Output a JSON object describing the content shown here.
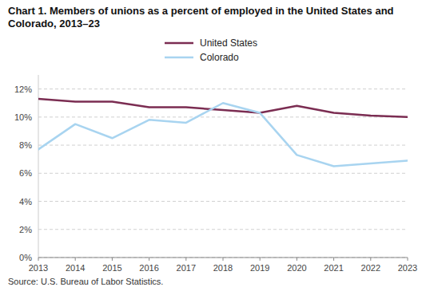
{
  "chart_data": {
    "type": "line",
    "title": "Chart 1. Members of unions as a percent of employed in the United States and Colorado, 2013–23",
    "annotations": [
      "Source: U.S. Bureau of Labor Statistics."
    ],
    "x": [
      2013,
      2014,
      2015,
      2016,
      2017,
      2018,
      2019,
      2020,
      2021,
      2022,
      2023
    ],
    "series": [
      {
        "name": "United States",
        "color": "#7b2d52",
        "values": [
          11.3,
          11.1,
          11.1,
          10.7,
          10.7,
          10.5,
          10.3,
          10.8,
          10.3,
          10.1,
          10.0
        ]
      },
      {
        "name": "Colorado",
        "color": "#a8d4f0",
        "values": [
          7.7,
          9.5,
          8.5,
          9.8,
          9.6,
          11.0,
          10.3,
          7.3,
          6.5,
          6.7,
          6.9
        ]
      }
    ],
    "xlim": [
      2013,
      2023
    ],
    "xticks": [
      2013,
      2014,
      2015,
      2016,
      2017,
      2018,
      2019,
      2020,
      2021,
      2022,
      2023
    ],
    "ylim": [
      0,
      13
    ],
    "yticks": [
      {
        "value": 0,
        "label": "0%"
      },
      {
        "value": 2,
        "label": "2%"
      },
      {
        "value": 4,
        "label": "4%"
      },
      {
        "value": 6,
        "label": "6%"
      },
      {
        "value": 8,
        "label": "8%"
      },
      {
        "value": 10,
        "label": "10%"
      },
      {
        "value": 12,
        "label": "12%"
      }
    ],
    "grid": true,
    "legend": "top"
  }
}
